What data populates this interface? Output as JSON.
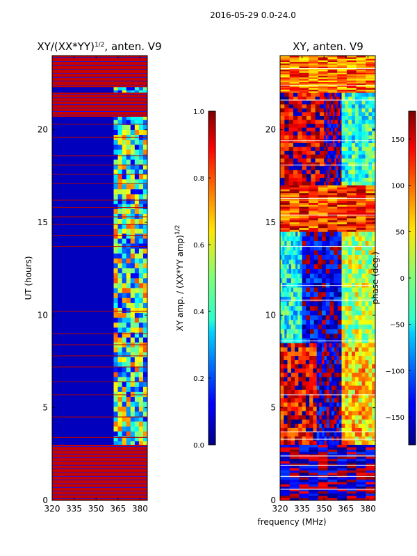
{
  "figure": {
    "suptitle": "2016-05-29 0.0-24.0",
    "xlabel": "frequency (MHz)"
  },
  "chart_data": [
    {
      "type": "heatmap",
      "id": "amp",
      "title_main": "XY/(XX*YY)",
      "title_exp": "1/2",
      "title_suffix": ", anten. V9",
      "xlabel": "",
      "ylabel": "UT (hours)",
      "xlim": [
        320,
        385
      ],
      "ylim": [
        0,
        24
      ],
      "xticks": [
        320,
        335,
        350,
        365,
        380
      ],
      "yticks": [
        0,
        5,
        10,
        15,
        20
      ],
      "colorbar": {
        "colormap": "jet",
        "label_main": "XY amp. / (XX*YY amp)",
        "label_exp": "1/2",
        "range": [
          0.0,
          1.0
        ],
        "ticks": [
          "0.0",
          "0.2",
          "0.4",
          "0.6",
          "0.8",
          "1.0"
        ],
        "tick_values": [
          0.0,
          0.2,
          0.4,
          0.6,
          0.8,
          1.0
        ]
      },
      "base_value": 0.06,
      "band_regions": [
        {
          "freq": [
            362,
            385
          ],
          "time": [
            0,
            24
          ],
          "value": 0.45,
          "note": "speckled cyan/yellow band"
        }
      ],
      "saturated_time_bands": [
        [
          0.0,
          3.0
        ],
        [
          20.7,
          22.0
        ],
        [
          22.3,
          24.0
        ]
      ],
      "flagged_lines_hours": [
        3.4,
        4.5,
        5.7,
        6.4,
        7.2,
        7.8,
        8.4,
        9.0,
        10.2,
        13.7,
        14.3,
        14.9,
        15.3,
        15.8,
        16.2,
        17.1,
        17.6,
        18.1,
        18.6,
        19.6,
        20.3
      ]
    },
    {
      "type": "heatmap",
      "id": "phase",
      "title_main": "XY, anten. V9",
      "xlabel": "",
      "ylabel": "",
      "xlim": [
        320,
        385
      ],
      "ylim": [
        0,
        24
      ],
      "xticks": [
        320,
        335,
        350,
        365,
        380
      ],
      "yticks": [
        0,
        5,
        10,
        15,
        20
      ],
      "colorbar": {
        "colormap": "jet",
        "label_main": "phase (deg.)",
        "range": [
          -180,
          180
        ],
        "ticks": [
          "−150",
          "−100",
          "−50",
          "0",
          "50",
          "100",
          "150"
        ],
        "tick_values": [
          -150,
          -100,
          -50,
          0,
          50,
          100,
          150
        ]
      },
      "regions": [
        {
          "freq": [
            320,
            345
          ],
          "time": [
            3.0,
            8.5
          ],
          "value": 140
        },
        {
          "freq": [
            345,
            362
          ],
          "time": [
            3.0,
            8.5
          ],
          "value": -160
        },
        {
          "freq": [
            362,
            385
          ],
          "time": [
            3.0,
            8.5
          ],
          "value": 60
        },
        {
          "freq": [
            320,
            335
          ],
          "time": [
            8.5,
            14.5
          ],
          "value": -40
        },
        {
          "freq": [
            335,
            362
          ],
          "time": [
            8.5,
            14.5
          ],
          "value": -150
        },
        {
          "freq": [
            362,
            385
          ],
          "time": [
            8.5,
            14.5
          ],
          "value": 20
        },
        {
          "freq": [
            320,
            350
          ],
          "time": [
            17.0,
            22.0
          ],
          "value": 150
        },
        {
          "freq": [
            350,
            362
          ],
          "time": [
            17.0,
            22.0
          ],
          "value": -170
        },
        {
          "freq": [
            362,
            385
          ],
          "time": [
            17.0,
            22.0
          ],
          "value": -30
        },
        {
          "freq": [
            320,
            385
          ],
          "time": [
            0.0,
            3.0
          ],
          "value": -170
        },
        {
          "freq": [
            320,
            385
          ],
          "time": [
            14.5,
            17.0
          ],
          "value": 120
        },
        {
          "freq": [
            320,
            385
          ],
          "time": [
            22.0,
            24.0
          ],
          "value": 100
        }
      ],
      "flagged_lines_hours": [
        0.6,
        1.3,
        1.9,
        2.4,
        3.3,
        3.7,
        5.7,
        8.6,
        10.8,
        11.6,
        13.7,
        15.4,
        16.3,
        18.1,
        19.4,
        21.6,
        22.4,
        23.3
      ]
    }
  ]
}
